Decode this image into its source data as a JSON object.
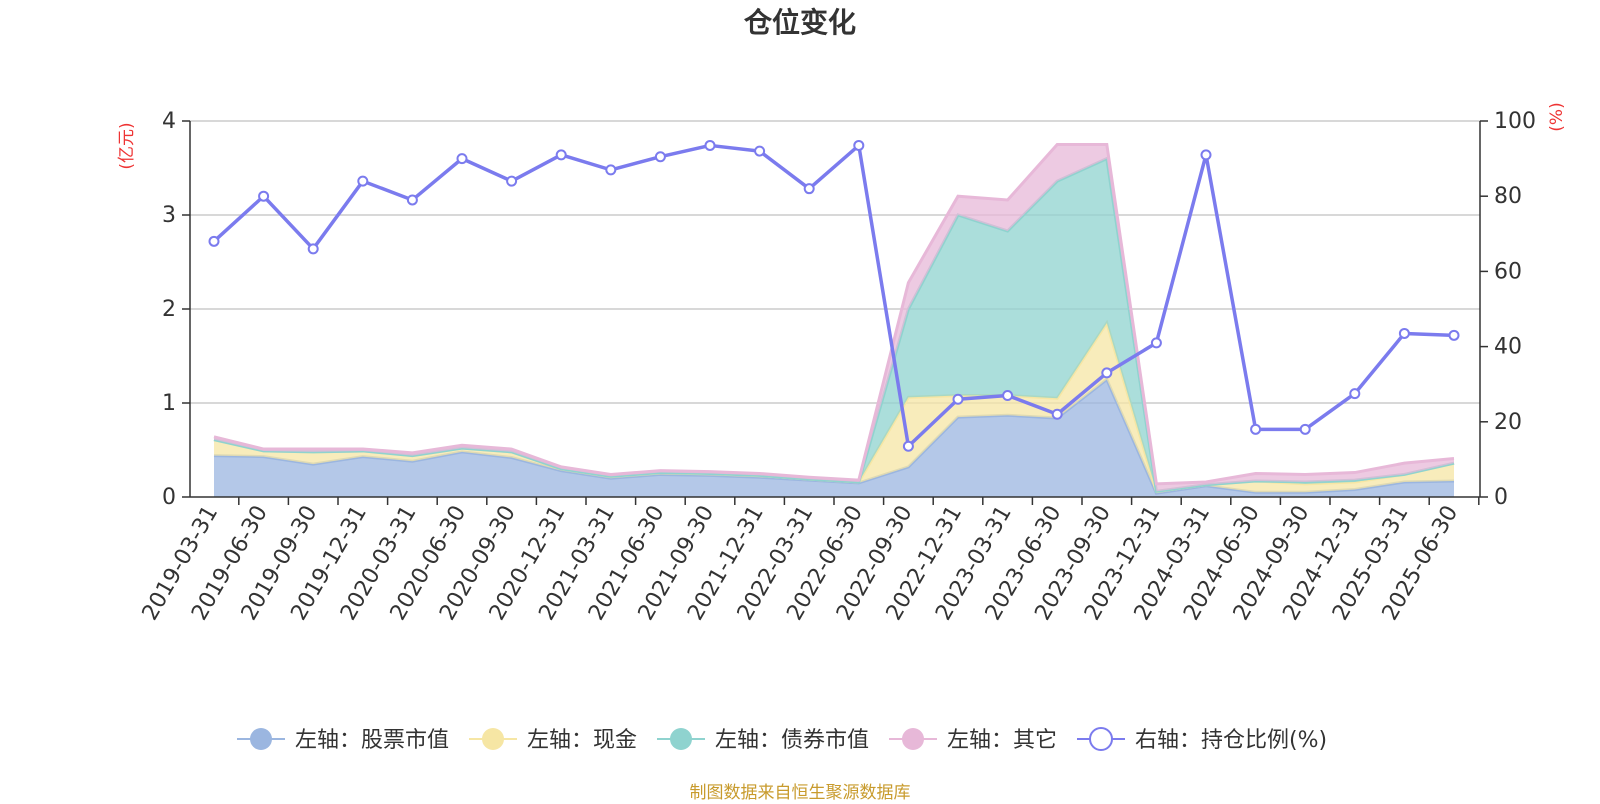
{
  "chart_data": {
    "type": "area",
    "title": "仓位变化",
    "left_axis": {
      "unit_label": "(亿元)",
      "range": [
        0,
        4
      ],
      "ticks": [
        "0",
        "1",
        "2",
        "3",
        "4"
      ]
    },
    "right_axis": {
      "unit_label": "(%)",
      "range": [
        0,
        100
      ],
      "ticks": [
        "0",
        "20",
        "40",
        "60",
        "80",
        "100"
      ]
    },
    "categories": [
      "2019-03-31",
      "2019-06-30",
      "2019-09-30",
      "2019-12-31",
      "2020-03-31",
      "2020-06-30",
      "2020-09-30",
      "2020-12-31",
      "2021-03-31",
      "2021-06-30",
      "2021-09-30",
      "2021-12-31",
      "2022-03-31",
      "2022-06-30",
      "2022-09-30",
      "2022-12-31",
      "2023-03-31",
      "2023-06-30",
      "2023-09-30",
      "2023-12-31",
      "2024-03-31",
      "2024-06-30",
      "2024-09-30",
      "2024-12-31",
      "2025-03-31",
      "2025-06-30"
    ],
    "series": [
      {
        "name": "左轴：股票市值",
        "axis": "left",
        "type": "stacked-area",
        "color": "#9bb6e0",
        "values": [
          0.44,
          0.43,
          0.35,
          0.43,
          0.38,
          0.48,
          0.42,
          0.28,
          0.2,
          0.24,
          0.23,
          0.21,
          0.18,
          0.15,
          0.32,
          0.85,
          0.87,
          0.84,
          1.25,
          0.04,
          0.12,
          0.05,
          0.05,
          0.08,
          0.16,
          0.17
        ]
      },
      {
        "name": "左轴：现金",
        "axis": "left",
        "type": "stacked-area",
        "color": "#f6e6a4",
        "values": [
          0.17,
          0.06,
          0.13,
          0.06,
          0.06,
          0.04,
          0.06,
          0.02,
          0.02,
          0.02,
          0.02,
          0.02,
          0.01,
          0.01,
          0.74,
          0.23,
          0.21,
          0.21,
          0.6,
          0.02,
          0.01,
          0.12,
          0.09,
          0.08,
          0.08,
          0.19
        ]
      },
      {
        "name": "左轴：债券市值",
        "axis": "left",
        "type": "stacked-area",
        "color": "#8fd3cf",
        "values": [
          0,
          0,
          0,
          0,
          0,
          0,
          0,
          0,
          0,
          0,
          0,
          0,
          0,
          0,
          0.94,
          1.92,
          1.75,
          2.31,
          1.75,
          0,
          0,
          0,
          0.02,
          0.02,
          0,
          0
        ]
      },
      {
        "name": "左轴：其它",
        "axis": "left",
        "type": "stacked-area",
        "color": "#e7b8d8",
        "values": [
          0.03,
          0.02,
          0.03,
          0.02,
          0.03,
          0.03,
          0.03,
          0.02,
          0.02,
          0.02,
          0.02,
          0.02,
          0.02,
          0.02,
          0.28,
          0.2,
          0.33,
          0.39,
          0.15,
          0.08,
          0.03,
          0.08,
          0.08,
          0.08,
          0.12,
          0.05
        ]
      },
      {
        "name": "右轴：持仓比例(%)",
        "axis": "right",
        "type": "line",
        "color": "#7b7bee",
        "values": [
          68,
          80,
          66,
          84,
          79,
          90,
          84,
          91,
          87,
          90.5,
          93.5,
          92,
          82,
          93.5,
          13.5,
          26,
          27,
          22,
          33,
          41,
          91,
          18,
          18,
          27.5,
          43.5,
          43
        ]
      }
    ],
    "grid": true,
    "legend_position": "bottom"
  },
  "footer": {
    "source": "制图数据来自恒生聚源数据库"
  },
  "colors": {
    "axis": "#333333",
    "grid": "#cccccc",
    "unit_label": "#ee3333",
    "title": "#333333"
  }
}
